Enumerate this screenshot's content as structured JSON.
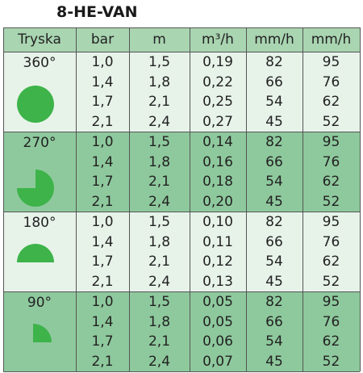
{
  "title": "8-HE-VAN",
  "table": {
    "header": [
      "Tryska",
      "bar",
      "m",
      "m³/h",
      "mm/h",
      "mm/h"
    ],
    "groups": [
      {
        "label": "360°",
        "rows": [
          [
            "1,0",
            "1,5",
            "0,19",
            "82",
            "95"
          ],
          [
            "1,4",
            "1,8",
            "0,22",
            "66",
            "76"
          ],
          [
            "1,7",
            "2,1",
            "0,25",
            "54",
            "62"
          ],
          [
            "2,1",
            "2,4",
            "0,27",
            "45",
            "52"
          ]
        ]
      },
      {
        "label": "270°",
        "rows": [
          [
            "1,0",
            "1,5",
            "0,14",
            "82",
            "95"
          ],
          [
            "1,4",
            "1,8",
            "0,16",
            "66",
            "76"
          ],
          [
            "1,7",
            "2,1",
            "0,18",
            "54",
            "62"
          ],
          [
            "2,1",
            "2,4",
            "0,20",
            "45",
            "52"
          ]
        ]
      },
      {
        "label": "180°",
        "rows": [
          [
            "1,0",
            "1,5",
            "0,10",
            "82",
            "95"
          ],
          [
            "1,4",
            "1,8",
            "0,11",
            "66",
            "76"
          ],
          [
            "1,7",
            "2,1",
            "0,12",
            "54",
            "62"
          ],
          [
            "2,1",
            "2,4",
            "0,13",
            "45",
            "52"
          ]
        ]
      },
      {
        "label": "90°",
        "rows": [
          [
            "1,0",
            "1,5",
            "0,05",
            "82",
            "95"
          ],
          [
            "1,4",
            "1,8",
            "0,05",
            "66",
            "76"
          ],
          [
            "1,7",
            "2,1",
            "0,06",
            "54",
            "62"
          ],
          [
            "2,1",
            "2,4",
            "0,07",
            "45",
            "52"
          ]
        ]
      }
    ]
  }
}
